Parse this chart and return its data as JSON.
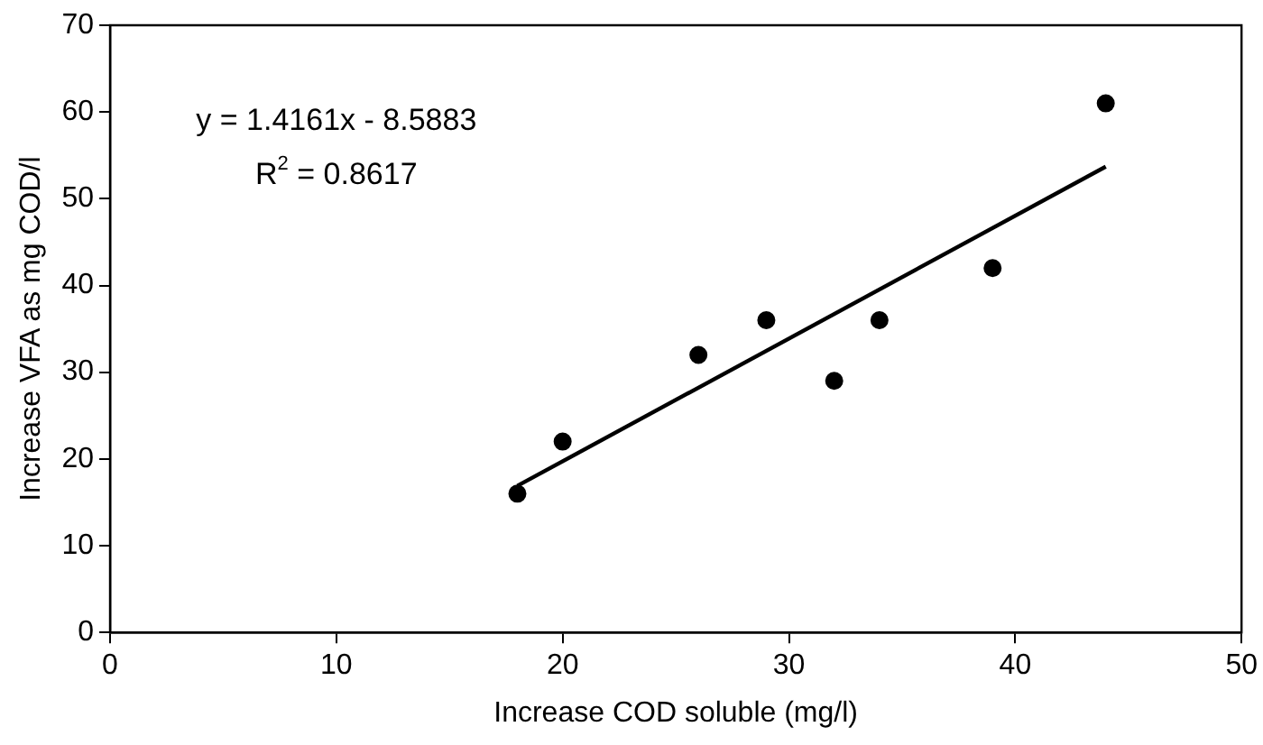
{
  "chart_data": {
    "type": "scatter",
    "xlabel": "Increase COD soluble (mg/l)",
    "ylabel": "Increase VFA as mg COD/l",
    "annotations": [
      "y = 1.4161x - 8.5883",
      "R$^{2}$ = 0.8617"
    ],
    "series": [
      {
        "color": "#000000",
        "marker": "circle",
        "x": [
          18,
          20,
          26,
          29,
          32,
          34,
          39,
          44
        ],
        "values": [
          16,
          22,
          32,
          36,
          29,
          36,
          42,
          61
        ]
      },
      {
        "type": "line",
        "color": "#000000",
        "marker": "none",
        "line_style": "solid",
        "x": [
          18,
          44
        ],
        "values": [
          16.9,
          53.7
        ]
      }
    ],
    "xlim": [
      0,
      50
    ],
    "xticks": [
      0,
      10,
      20,
      30,
      40,
      50
    ],
    "ylim": [
      0,
      70
    ],
    "yticks": [
      0,
      10,
      20,
      30,
      40,
      50,
      60,
      70
    ],
    "grid": false,
    "legend": false
  }
}
